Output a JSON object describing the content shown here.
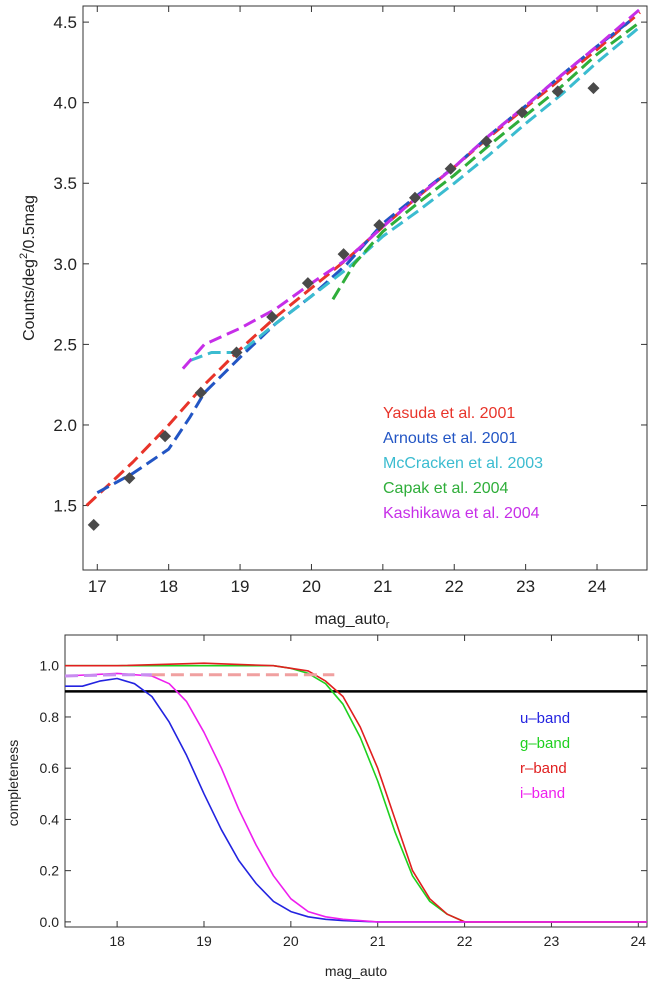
{
  "chart_data": [
    {
      "type": "line",
      "title": "",
      "xlabel": "mag_auto",
      "xlabel_subscript": "r",
      "ylabel": "Counts/deg",
      "ylabel_superscript": "2",
      "ylabel_suffix": "/0.5mag",
      "xlim": [
        16.8,
        24.7
      ],
      "ylim": [
        1.1,
        4.6
      ],
      "x_ticks": [
        17,
        18,
        19,
        20,
        21,
        22,
        23,
        24
      ],
      "y_ticks": [
        1.5,
        2.0,
        2.5,
        3.0,
        3.5,
        4.0,
        4.5
      ],
      "x_tick_labels": [
        "17",
        "18",
        "19",
        "20",
        "21",
        "22",
        "23",
        "24"
      ],
      "y_tick_labels": [
        "1.5",
        "2.0",
        "2.5",
        "3.0",
        "3.5",
        "4.0",
        "4.5"
      ],
      "grid": false,
      "legend_position": "bottom-right",
      "series": [
        {
          "name": "Yasuda et al. 2001",
          "style": "dashed",
          "color": "#e8342a",
          "x": [
            16.85,
            17.5,
            18.0,
            18.5,
            19.0,
            19.5,
            20.0,
            20.5,
            21.0,
            21.5,
            22.0,
            22.5,
            23.0,
            23.5,
            24.0,
            24.6
          ],
          "y": [
            1.5,
            1.77,
            2.0,
            2.25,
            2.47,
            2.67,
            2.85,
            3.03,
            3.23,
            3.42,
            3.6,
            3.79,
            3.97,
            4.15,
            4.33,
            4.56
          ]
        },
        {
          "name": "Arnouts et al. 2001",
          "style": "dashed",
          "color": "#2255c4",
          "x": [
            17.0,
            17.5,
            18.0,
            18.3,
            18.5,
            19.0,
            19.5,
            20.0,
            20.5,
            21.0,
            21.5,
            22.0,
            22.5,
            23.0,
            23.5,
            24.0,
            24.5
          ],
          "y": [
            1.58,
            1.7,
            1.85,
            2.05,
            2.2,
            2.42,
            2.63,
            2.8,
            3.0,
            3.25,
            3.43,
            3.6,
            3.8,
            3.98,
            4.17,
            4.35,
            4.52
          ]
        },
        {
          "name": "McCracken et al. 2003",
          "style": "dashed",
          "color": "#3bbcd0",
          "x": [
            18.3,
            18.6,
            19.0,
            19.5,
            20.0,
            20.5,
            21.0,
            21.5,
            22.0,
            22.5,
            23.0,
            23.5,
            24.0,
            24.6
          ],
          "y": [
            2.4,
            2.45,
            2.45,
            2.63,
            2.8,
            2.97,
            3.17,
            3.33,
            3.5,
            3.68,
            3.87,
            4.05,
            4.25,
            4.47
          ]
        },
        {
          "name": "Capak et al. 2004",
          "style": "dashed",
          "color": "#2fae3a",
          "x": [
            20.3,
            20.6,
            21.0,
            21.5,
            22.0,
            22.5,
            23.0,
            23.5,
            24.0,
            24.6
          ],
          "y": [
            2.78,
            3.0,
            3.2,
            3.38,
            3.55,
            3.74,
            3.92,
            4.1,
            4.3,
            4.5
          ]
        },
        {
          "name": "Kashikawa et al. 2004",
          "style": "dashed",
          "color": "#c62ee8",
          "x": [
            18.2,
            18.5,
            19.0,
            19.5,
            20.0,
            20.5,
            21.0,
            21.5,
            22.0,
            22.5,
            23.0,
            23.5,
            24.0,
            24.6
          ],
          "y": [
            2.35,
            2.5,
            2.6,
            2.72,
            2.88,
            3.03,
            3.23,
            3.42,
            3.6,
            3.8,
            3.98,
            4.17,
            4.35,
            4.58
          ]
        },
        {
          "name": "",
          "style": "markers",
          "marker": "diamond",
          "color": "#4a4a4a",
          "x": [
            16.95,
            17.45,
            17.95,
            18.45,
            18.95,
            19.45,
            19.95,
            20.45,
            20.95,
            21.45,
            21.95,
            22.45,
            22.95,
            23.45,
            23.95
          ],
          "y": [
            1.38,
            1.67,
            1.93,
            2.2,
            2.45,
            2.67,
            2.88,
            3.06,
            3.24,
            3.41,
            3.59,
            3.76,
            3.94,
            4.07,
            4.09
          ]
        }
      ]
    },
    {
      "type": "line",
      "title": "",
      "xlabel": "mag_auto",
      "ylabel": "completeness",
      "xlim": [
        17.4,
        24.1
      ],
      "ylim": [
        -0.02,
        1.12
      ],
      "x_ticks": [
        18,
        19,
        20,
        21,
        22,
        23,
        24
      ],
      "y_ticks": [
        0.0,
        0.2,
        0.4,
        0.6,
        0.8,
        1.0
      ],
      "x_tick_labels": [
        "18",
        "19",
        "20",
        "21",
        "22",
        "23",
        "24"
      ],
      "y_tick_labels": [
        "0.0",
        "0.2",
        "0.4",
        "0.6",
        "0.8",
        "1.0"
      ],
      "grid": false,
      "legend_position": "right",
      "reference_line": {
        "y": 0.9,
        "color": "#000000"
      },
      "series": [
        {
          "name": "u–band",
          "style": "solid",
          "color": "#2323e0",
          "x": [
            17.4,
            17.6,
            17.8,
            18.0,
            18.2,
            18.4,
            18.6,
            18.8,
            19.0,
            19.2,
            19.4,
            19.6,
            19.8,
            20.0,
            20.2,
            20.4,
            20.6,
            21.0,
            22.0,
            24.1
          ],
          "y": [
            0.92,
            0.92,
            0.94,
            0.95,
            0.93,
            0.88,
            0.78,
            0.65,
            0.5,
            0.36,
            0.24,
            0.15,
            0.08,
            0.04,
            0.02,
            0.01,
            0.005,
            0.0,
            0.0,
            0.0
          ]
        },
        {
          "name": "g–band",
          "style": "solid",
          "color": "#1fd01f",
          "x": [
            17.4,
            18.0,
            19.0,
            19.8,
            20.0,
            20.2,
            20.4,
            20.6,
            20.8,
            21.0,
            21.2,
            21.4,
            21.6,
            21.8,
            22.0,
            24.1
          ],
          "y": [
            1.0,
            1.0,
            1.0,
            1.0,
            0.99,
            0.97,
            0.93,
            0.85,
            0.72,
            0.55,
            0.35,
            0.18,
            0.08,
            0.03,
            0.0,
            0.0
          ]
        },
        {
          "name": "r–band",
          "style": "solid",
          "color": "#e01f1f",
          "x": [
            17.4,
            18.0,
            19.0,
            19.8,
            20.0,
            20.2,
            20.4,
            20.6,
            20.8,
            21.0,
            21.2,
            21.4,
            21.6,
            21.8,
            22.0,
            24.1
          ],
          "y": [
            1.0,
            1.0,
            1.01,
            1.0,
            0.99,
            0.98,
            0.94,
            0.88,
            0.76,
            0.6,
            0.4,
            0.2,
            0.09,
            0.03,
            0.0,
            0.0
          ]
        },
        {
          "name": "i–band",
          "style": "solid",
          "color": "#ee1fee",
          "x": [
            17.4,
            18.0,
            18.4,
            18.6,
            18.8,
            19.0,
            19.2,
            19.4,
            19.6,
            19.8,
            20.0,
            20.2,
            20.4,
            20.6,
            21.0,
            22.0,
            24.1
          ],
          "y": [
            0.96,
            0.97,
            0.96,
            0.93,
            0.86,
            0.74,
            0.6,
            0.44,
            0.3,
            0.18,
            0.09,
            0.04,
            0.02,
            0.01,
            0.0,
            0.0,
            0.0
          ]
        },
        {
          "name": "",
          "style": "dashed",
          "color": "#c88cf0",
          "x": [
            17.4,
            18.0,
            18.4
          ],
          "y": [
            0.96,
            0.965,
            0.965
          ]
        },
        {
          "name": "",
          "style": "dashed",
          "color": "#f0a0a0",
          "x": [
            18.4,
            19.0,
            19.5,
            20.0,
            20.5
          ],
          "y": [
            0.965,
            0.965,
            0.965,
            0.965,
            0.965
          ]
        }
      ]
    }
  ]
}
